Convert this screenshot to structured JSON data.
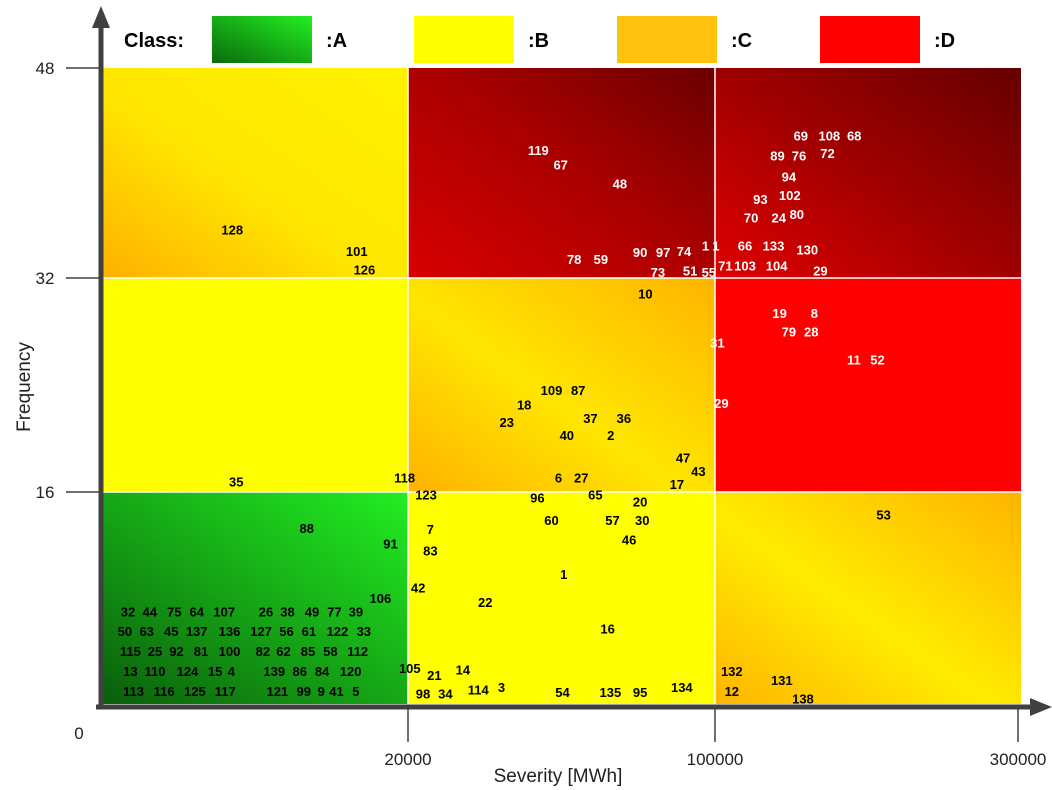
{
  "chart_data": {
    "type": "scatter",
    "xlabel": "Severity [MWh]",
    "ylabel": "Frequency",
    "x_ticks": [
      "20000",
      "100000",
      "300000"
    ],
    "y_ticks": [
      "48",
      "32",
      "16"
    ],
    "origin_label": "0",
    "legend": {
      "title": "Class:",
      "entries": [
        {
          "label": ":A",
          "color": "#19c419"
        },
        {
          "label": ":B",
          "color": "#ffff00"
        },
        {
          "label": ":C",
          "color": "#ffc20e"
        },
        {
          "label": ":D",
          "color": "#ff0000"
        }
      ]
    },
    "zones": [
      {
        "row": "top",
        "col": "low",
        "class": "C"
      },
      {
        "row": "top",
        "col": "mid",
        "class": "D"
      },
      {
        "row": "top",
        "col": "high",
        "class": "D"
      },
      {
        "row": "middle",
        "col": "low",
        "class": "B"
      },
      {
        "row": "middle",
        "col": "mid",
        "class": "C"
      },
      {
        "row": "middle",
        "col": "high",
        "class": "D"
      },
      {
        "row": "bottom",
        "col": "low",
        "class": "A"
      },
      {
        "row": "bottom",
        "col": "mid",
        "class": "B"
      },
      {
        "row": "bottom",
        "col": "high",
        "class": "C"
      }
    ],
    "points": [
      {
        "label": "128",
        "x": 0.428,
        "y": 35.8,
        "color": "#000000"
      },
      {
        "label": "101",
        "x": 0.834,
        "y": 34.2,
        "color": "#000000"
      },
      {
        "label": "126",
        "x": 0.859,
        "y": 32.8,
        "color": "#000000"
      },
      {
        "label": "119",
        "x": 1.426,
        "y": 41.8,
        "color": "#ffffff"
      },
      {
        "label": "67",
        "x": 1.499,
        "y": 40.7,
        "color": "#ffffff"
      },
      {
        "label": "48",
        "x": 1.692,
        "y": 39.3,
        "color": "#ffffff"
      },
      {
        "label": "78",
        "x": 1.543,
        "y": 33.6,
        "color": "#ffffff"
      },
      {
        "label": "59",
        "x": 1.63,
        "y": 33.6,
        "color": "#ffffff"
      },
      {
        "label": "90",
        "x": 1.758,
        "y": 34.1,
        "color": "#ffffff"
      },
      {
        "label": "97",
        "x": 1.833,
        "y": 34.1,
        "color": "#ffffff"
      },
      {
        "label": "74",
        "x": 1.901,
        "y": 34.2,
        "color": "#ffffff"
      },
      {
        "label": "1",
        "x": 1.971,
        "y": 34.6,
        "color": "#ffffff"
      },
      {
        "label": "1",
        "x": 2.005,
        "y": 34.6,
        "color": "#ffffff"
      },
      {
        "label": "73",
        "x": 1.816,
        "y": 32.6,
        "color": "#ffffff"
      },
      {
        "label": "51",
        "x": 1.921,
        "y": 32.7,
        "color": "#ffffff"
      },
      {
        "label": "55",
        "x": 1.982,
        "y": 32.6,
        "color": "#ffffff"
      },
      {
        "label": "71",
        "x": 2.036,
        "y": 33.1,
        "color": "#ffffff"
      },
      {
        "label": "10",
        "x": 1.775,
        "y": 31.0,
        "color": "#000000"
      },
      {
        "label": "69",
        "x": 2.282,
        "y": 42.9,
        "color": "#ffffff"
      },
      {
        "label": "108",
        "x": 2.375,
        "y": 42.9,
        "color": "#ffffff"
      },
      {
        "label": "68",
        "x": 2.456,
        "y": 42.9,
        "color": "#ffffff"
      },
      {
        "label": "89",
        "x": 2.206,
        "y": 41.4,
        "color": "#ffffff"
      },
      {
        "label": "76",
        "x": 2.276,
        "y": 41.4,
        "color": "#ffffff"
      },
      {
        "label": "72",
        "x": 2.369,
        "y": 41.6,
        "color": "#ffffff"
      },
      {
        "label": "94",
        "x": 2.243,
        "y": 39.8,
        "color": "#ffffff"
      },
      {
        "label": "93",
        "x": 2.15,
        "y": 38.1,
        "color": "#ffffff"
      },
      {
        "label": "102",
        "x": 2.246,
        "y": 38.4,
        "color": "#ffffff"
      },
      {
        "label": "70",
        "x": 2.12,
        "y": 36.7,
        "color": "#ffffff"
      },
      {
        "label": "24",
        "x": 2.21,
        "y": 36.7,
        "color": "#ffffff"
      },
      {
        "label": "80",
        "x": 2.269,
        "y": 37.0,
        "color": "#ffffff"
      },
      {
        "label": "66",
        "x": 2.1,
        "y": 34.6,
        "color": "#ffffff"
      },
      {
        "label": "133",
        "x": 2.193,
        "y": 34.6,
        "color": "#ffffff"
      },
      {
        "label": "130",
        "x": 2.303,
        "y": 34.3,
        "color": "#ffffff"
      },
      {
        "label": "103",
        "x": 2.1,
        "y": 33.1,
        "color": "#ffffff"
      },
      {
        "label": "104",
        "x": 2.203,
        "y": 33.1,
        "color": "#ffffff"
      },
      {
        "label": "29",
        "x": 2.346,
        "y": 32.7,
        "color": "#ffffff"
      },
      {
        "label": "19",
        "x": 2.213,
        "y": 29.5,
        "color": "#ffffff"
      },
      {
        "label": "8",
        "x": 2.326,
        "y": 29.5,
        "color": "#ffffff"
      },
      {
        "label": "79",
        "x": 2.243,
        "y": 28.1,
        "color": "#ffffff"
      },
      {
        "label": "28",
        "x": 2.316,
        "y": 28.1,
        "color": "#ffffff"
      },
      {
        "label": "11",
        "x": 2.455,
        "y": 26.0,
        "color": "#ffffff"
      },
      {
        "label": "52",
        "x": 2.532,
        "y": 26.0,
        "color": "#ffffff"
      },
      {
        "label": "31",
        "x": 2.01,
        "y": 27.3,
        "color": "#ffffff"
      },
      {
        "label": "29",
        "x": 2.023,
        "y": 22.7,
        "color": "#ffffff"
      },
      {
        "label": "109",
        "x": 1.469,
        "y": 23.7,
        "color": "#000000"
      },
      {
        "label": "87",
        "x": 1.556,
        "y": 23.7,
        "color": "#000000"
      },
      {
        "label": "18",
        "x": 1.38,
        "y": 22.6,
        "color": "#000000"
      },
      {
        "label": "23",
        "x": 1.323,
        "y": 21.3,
        "color": "#000000"
      },
      {
        "label": "37",
        "x": 1.596,
        "y": 21.6,
        "color": "#000000"
      },
      {
        "label": "36",
        "x": 1.705,
        "y": 21.6,
        "color": "#000000"
      },
      {
        "label": "40",
        "x": 1.519,
        "y": 20.3,
        "color": "#000000"
      },
      {
        "label": "2",
        "x": 1.662,
        "y": 20.3,
        "color": "#000000"
      },
      {
        "label": "47",
        "x": 1.898,
        "y": 18.6,
        "color": "#000000"
      },
      {
        "label": "43",
        "x": 1.948,
        "y": 17.6,
        "color": "#000000"
      },
      {
        "label": "17",
        "x": 1.878,
        "y": 16.6,
        "color": "#000000"
      },
      {
        "label": "118",
        "x": 0.99,
        "y": 17.1,
        "color": "#000000"
      },
      {
        "label": "35",
        "x": 0.441,
        "y": 16.8,
        "color": "#000000"
      },
      {
        "label": "6",
        "x": 1.492,
        "y": 17.1,
        "color": "#000000"
      },
      {
        "label": "27",
        "x": 1.566,
        "y": 17.1,
        "color": "#000000"
      },
      {
        "label": "123",
        "x": 1.06,
        "y": 15.8,
        "color": "#000000"
      },
      {
        "label": "96",
        "x": 1.423,
        "y": 15.6,
        "color": "#000000"
      },
      {
        "label": "65",
        "x": 1.612,
        "y": 15.8,
        "color": "#000000"
      },
      {
        "label": "20",
        "x": 1.758,
        "y": 15.3,
        "color": "#000000"
      },
      {
        "label": "88",
        "x": 0.671,
        "y": 13.3,
        "color": "#000000"
      },
      {
        "label": "91",
        "x": 0.944,
        "y": 12.1,
        "color": "#000000"
      },
      {
        "label": "7",
        "x": 1.074,
        "y": 13.2,
        "color": "#000000"
      },
      {
        "label": "83",
        "x": 1.074,
        "y": 11.6,
        "color": "#000000"
      },
      {
        "label": "60",
        "x": 1.469,
        "y": 13.9,
        "color": "#000000"
      },
      {
        "label": "57",
        "x": 1.668,
        "y": 13.9,
        "color": "#000000"
      },
      {
        "label": "30",
        "x": 1.765,
        "y": 13.9,
        "color": "#000000"
      },
      {
        "label": "46",
        "x": 1.722,
        "y": 12.4,
        "color": "#000000"
      },
      {
        "label": "1",
        "x": 1.509,
        "y": 9.8,
        "color": "#000000"
      },
      {
        "label": "106",
        "x": 0.911,
        "y": 8.0,
        "color": "#000000"
      },
      {
        "label": "42",
        "x": 1.034,
        "y": 8.8,
        "color": "#000000"
      },
      {
        "label": "22",
        "x": 1.253,
        "y": 7.7,
        "color": "#000000"
      },
      {
        "label": "16",
        "x": 1.652,
        "y": 5.7,
        "color": "#000000"
      },
      {
        "label": "105",
        "x": 1.007,
        "y": 2.7,
        "color": "#000000"
      },
      {
        "label": "21",
        "x": 1.087,
        "y": 2.2,
        "color": "#000000"
      },
      {
        "label": "14",
        "x": 1.18,
        "y": 2.6,
        "color": "#000000"
      },
      {
        "label": "98",
        "x": 1.05,
        "y": 0.8,
        "color": "#000000"
      },
      {
        "label": "34",
        "x": 1.123,
        "y": 0.8,
        "color": "#000000"
      },
      {
        "label": "114",
        "x": 1.23,
        "y": 1.1,
        "color": "#000000"
      },
      {
        "label": "3",
        "x": 1.306,
        "y": 1.3,
        "color": "#000000"
      },
      {
        "label": "54",
        "x": 1.505,
        "y": 0.9,
        "color": "#000000"
      },
      {
        "label": "135",
        "x": 1.661,
        "y": 0.9,
        "color": "#000000"
      },
      {
        "label": "95",
        "x": 1.758,
        "y": 0.9,
        "color": "#000000"
      },
      {
        "label": "134",
        "x": 1.894,
        "y": 1.3,
        "color": "#000000"
      },
      {
        "label": "132",
        "x": 2.057,
        "y": 2.5,
        "color": "#000000"
      },
      {
        "label": "12",
        "x": 2.057,
        "y": 1.0,
        "color": "#000000"
      },
      {
        "label": "131",
        "x": 2.22,
        "y": 1.8,
        "color": "#000000"
      },
      {
        "label": "138",
        "x": 2.289,
        "y": 0.4,
        "color": "#000000"
      },
      {
        "label": "53",
        "x": 2.552,
        "y": 14.3,
        "color": "#000000"
      },
      {
        "label": "32",
        "x": 0.088,
        "y": 7.0,
        "color": "#000000"
      },
      {
        "label": "44",
        "x": 0.159,
        "y": 7.0,
        "color": "#000000"
      },
      {
        "label": "75",
        "x": 0.239,
        "y": 7.0,
        "color": "#000000"
      },
      {
        "label": "64",
        "x": 0.312,
        "y": 7.0,
        "color": "#000000"
      },
      {
        "label": "107",
        "x": 0.402,
        "y": 7.0,
        "color": "#000000"
      },
      {
        "label": "26",
        "x": 0.538,
        "y": 7.0,
        "color": "#000000"
      },
      {
        "label": "38",
        "x": 0.608,
        "y": 7.0,
        "color": "#000000"
      },
      {
        "label": "49",
        "x": 0.688,
        "y": 7.0,
        "color": "#000000"
      },
      {
        "label": "77",
        "x": 0.761,
        "y": 7.0,
        "color": "#000000"
      },
      {
        "label": "39",
        "x": 0.831,
        "y": 7.0,
        "color": "#000000"
      },
      {
        "label": "50",
        "x": 0.078,
        "y": 5.5,
        "color": "#000000"
      },
      {
        "label": "63",
        "x": 0.149,
        "y": 5.5,
        "color": "#000000"
      },
      {
        "label": "45",
        "x": 0.229,
        "y": 5.5,
        "color": "#000000"
      },
      {
        "label": "137",
        "x": 0.312,
        "y": 5.5,
        "color": "#000000"
      },
      {
        "label": "136",
        "x": 0.419,
        "y": 5.5,
        "color": "#000000"
      },
      {
        "label": "127",
        "x": 0.522,
        "y": 5.5,
        "color": "#000000"
      },
      {
        "label": "56",
        "x": 0.605,
        "y": 5.5,
        "color": "#000000"
      },
      {
        "label": "61",
        "x": 0.678,
        "y": 5.5,
        "color": "#000000"
      },
      {
        "label": "122",
        "x": 0.771,
        "y": 5.5,
        "color": "#000000"
      },
      {
        "label": "33",
        "x": 0.857,
        "y": 5.5,
        "color": "#000000"
      },
      {
        "label": "115",
        "x": 0.096,
        "y": 4.0,
        "color": "#000000"
      },
      {
        "label": "25",
        "x": 0.176,
        "y": 4.0,
        "color": "#000000"
      },
      {
        "label": "92",
        "x": 0.246,
        "y": 4.0,
        "color": "#000000"
      },
      {
        "label": "81",
        "x": 0.326,
        "y": 4.0,
        "color": "#000000"
      },
      {
        "label": "100",
        "x": 0.419,
        "y": 4.0,
        "color": "#000000"
      },
      {
        "label": "82",
        "x": 0.528,
        "y": 4.0,
        "color": "#000000"
      },
      {
        "label": "62",
        "x": 0.595,
        "y": 4.0,
        "color": "#000000"
      },
      {
        "label": "85",
        "x": 0.675,
        "y": 4.0,
        "color": "#000000"
      },
      {
        "label": "58",
        "x": 0.748,
        "y": 4.0,
        "color": "#000000"
      },
      {
        "label": "112",
        "x": 0.837,
        "y": 4.0,
        "color": "#000000"
      },
      {
        "label": "13",
        "x": 0.096,
        "y": 2.5,
        "color": "#000000"
      },
      {
        "label": "110",
        "x": 0.176,
        "y": 2.5,
        "color": "#000000"
      },
      {
        "label": "124",
        "x": 0.282,
        "y": 2.5,
        "color": "#000000"
      },
      {
        "label": "15",
        "x": 0.372,
        "y": 2.5,
        "color": "#000000"
      },
      {
        "label": "4",
        "x": 0.425,
        "y": 2.5,
        "color": "#000000"
      },
      {
        "label": "139",
        "x": 0.565,
        "y": 2.5,
        "color": "#000000"
      },
      {
        "label": "86",
        "x": 0.648,
        "y": 2.5,
        "color": "#000000"
      },
      {
        "label": "84",
        "x": 0.721,
        "y": 2.5,
        "color": "#000000"
      },
      {
        "label": "120",
        "x": 0.814,
        "y": 2.5,
        "color": "#000000"
      },
      {
        "label": "113",
        "x": 0.106,
        "y": 1.0,
        "color": "#000000"
      },
      {
        "label": "116",
        "x": 0.206,
        "y": 1.0,
        "color": "#000000"
      },
      {
        "label": "125",
        "x": 0.306,
        "y": 1.0,
        "color": "#000000"
      },
      {
        "label": "117",
        "x": 0.405,
        "y": 1.0,
        "color": "#000000"
      },
      {
        "label": "121",
        "x": 0.575,
        "y": 1.0,
        "color": "#000000"
      },
      {
        "label": "99",
        "x": 0.661,
        "y": 1.0,
        "color": "#000000"
      },
      {
        "label": "9",
        "x": 0.718,
        "y": 1.0,
        "color": "#000000"
      },
      {
        "label": "41",
        "x": 0.768,
        "y": 1.0,
        "color": "#000000"
      },
      {
        "label": "5",
        "x": 0.831,
        "y": 1.0,
        "color": "#000000"
      }
    ]
  }
}
